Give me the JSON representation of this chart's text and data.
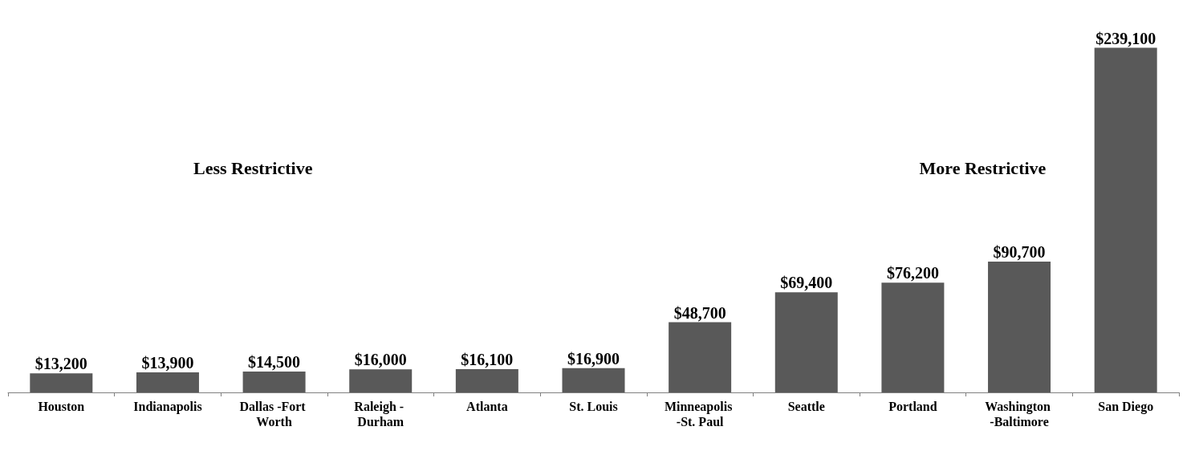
{
  "chart_data": {
    "type": "bar",
    "categories": [
      "Houston",
      "Indianapolis",
      "Dallas -Fort Worth",
      "Raleigh - Durham",
      "Atlanta",
      "St. Louis",
      "Minneapolis -St. Paul",
      "Seattle",
      "Portland",
      "Washington -Baltimore",
      "San Diego"
    ],
    "values": [
      13200,
      13900,
      14500,
      16000,
      16100,
      16900,
      48700,
      69400,
      76200,
      90700,
      239100
    ],
    "value_labels": [
      "$13,200",
      "$13,900",
      "$14,500",
      "$16,000",
      "$16,100",
      "$16,900",
      "$48,700",
      "$69,400",
      "$76,200",
      "$90,700",
      "$239,100"
    ],
    "color": "#595959",
    "annotations": [
      "Less Restrictive",
      "More Restrictive"
    ]
  }
}
